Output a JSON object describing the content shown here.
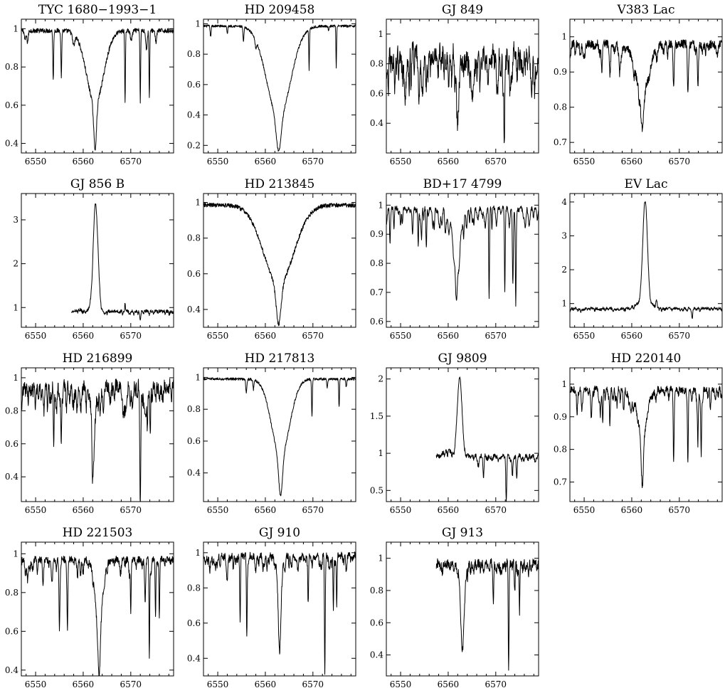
{
  "chart_data": [
    {
      "type": "line",
      "title": "TYC 1680−1993−1",
      "xlim": [
        6547,
        6579
      ],
      "ylim": [
        0.35,
        1.05
      ],
      "xticks": [
        6550,
        6560,
        6570
      ],
      "yticks": [
        0.4,
        0.6,
        0.8,
        1
      ],
      "ytick_labels": [
        "0.4",
        "0.6",
        "0.8",
        "1"
      ],
      "x_start": 6547,
      "x_end": 6579,
      "continuum": 0.99,
      "noise": 0.012,
      "lines": [
        [
          6547.8,
          0.05,
          0.15
        ],
        [
          6548.3,
          0.06,
          0.15
        ],
        [
          6553.7,
          0.26,
          0.09
        ],
        [
          6555.4,
          0.24,
          0.09
        ],
        [
          6558.0,
          0.06,
          0.25
        ],
        [
          6562.5,
          0.38,
          1.8
        ],
        [
          6562.5,
          0.24,
          0.28
        ],
        [
          6568.8,
          0.37,
          0.08
        ],
        [
          6570.1,
          0.05,
          0.2
        ],
        [
          6572.0,
          0.37,
          0.08
        ],
        [
          6573.3,
          0.1,
          0.15
        ],
        [
          6573.9,
          0.35,
          0.08
        ],
        [
          6575.3,
          0.06,
          0.15
        ]
      ]
    },
    {
      "type": "line",
      "title": "HD 209458",
      "xlim": [
        6547,
        6579
      ],
      "ylim": [
        0.15,
        1.03
      ],
      "xticks": [
        6550,
        6560,
        6570
      ],
      "yticks": [
        0.2,
        0.4,
        0.6,
        0.8,
        1
      ],
      "ytick_labels": [
        "0.2",
        "0.4",
        "0.6",
        "0.8",
        "1"
      ],
      "x_start": 6547,
      "x_end": 6579,
      "continuum": 0.985,
      "noise": 0.008,
      "lines": [
        [
          6548.5,
          0.07,
          0.1
        ],
        [
          6552.0,
          0.05,
          0.1
        ],
        [
          6555.4,
          0.1,
          0.1
        ],
        [
          6558.0,
          0.05,
          0.15
        ],
        [
          6562.8,
          0.6,
          2.5
        ],
        [
          6562.8,
          0.22,
          0.5
        ],
        [
          6569.2,
          0.27,
          0.07
        ],
        [
          6573.3,
          0.03,
          0.1
        ],
        [
          6574.9,
          0.27,
          0.07
        ]
      ]
    },
    {
      "type": "line",
      "title": "GJ 849",
      "xlim": [
        6547,
        6579
      ],
      "ylim": [
        0.2,
        1.1
      ],
      "xticks": [
        6550,
        6560,
        6570
      ],
      "yticks": [
        0.4,
        0.6,
        0.8,
        1
      ],
      "ytick_labels": [
        "0.4",
        "0.6",
        "0.8",
        "1"
      ],
      "x_start": 6547,
      "x_end": 6579,
      "continuum": 0.9,
      "noise": 0.06,
      "forest": {
        "spacing": 0.45,
        "depth": 0.2,
        "width": 0.12,
        "seed": 3
      },
      "lines": [
        [
          6553.8,
          0.3,
          0.1
        ],
        [
          6555.4,
          0.2,
          0.1
        ],
        [
          6562.0,
          0.5,
          0.25
        ],
        [
          6571.8,
          0.62,
          0.1
        ],
        [
          6573.0,
          0.15,
          0.1
        ]
      ]
    },
    {
      "type": "line",
      "title": "V383 Lac",
      "xlim": [
        6547,
        6579
      ],
      "ylim": [
        0.67,
        1.05
      ],
      "xticks": [
        6550,
        6560,
        6570
      ],
      "yticks": [
        0.7,
        0.8,
        0.9,
        1
      ],
      "ytick_labels": [
        "0.7",
        "0.8",
        "0.9",
        "1"
      ],
      "x_start": 6547,
      "x_end": 6579,
      "continuum": 0.98,
      "noise": 0.012,
      "forest": {
        "spacing": 1.6,
        "depth": 0.03,
        "width": 0.15,
        "seed": 5
      },
      "lines": [
        [
          6549.2,
          0.03,
          0.15
        ],
        [
          6553.7,
          0.08,
          0.12
        ],
        [
          6555.4,
          0.07,
          0.12
        ],
        [
          6557.6,
          0.05,
          0.3
        ],
        [
          6562.2,
          0.14,
          1.4
        ],
        [
          6562.2,
          0.1,
          0.3
        ],
        [
          6568.8,
          0.13,
          0.12
        ],
        [
          6571.8,
          0.12,
          0.12
        ],
        [
          6573.9,
          0.12,
          0.12
        ],
        [
          6575.5,
          0.03,
          0.1
        ]
      ]
    },
    {
      "type": "line",
      "title": "GJ 856 B",
      "xlim": [
        6547,
        6579
      ],
      "ylim": [
        0.55,
        3.6
      ],
      "xticks": [
        6550,
        6560,
        6570
      ],
      "yticks": [
        1,
        2,
        3
      ],
      "ytick_labels": [
        "1",
        "2",
        "3"
      ],
      "x_start": 6557.5,
      "x_end": 6579,
      "continuum": 0.92,
      "noise": 0.035,
      "forest": {
        "spacing": 0.9,
        "depth": 0.06,
        "width": 0.12,
        "seed": 7
      },
      "lines": [
        [
          6562.6,
          -2.48,
          0.5
        ],
        [
          6559.5,
          -0.03,
          0.5
        ],
        [
          6561.0,
          -0.05,
          0.5
        ],
        [
          6568.8,
          -0.22,
          0.07
        ],
        [
          6572.0,
          0.18,
          0.12
        ],
        [
          6573.9,
          0.08,
          0.12
        ]
      ]
    },
    {
      "type": "line",
      "title": "HD 213845",
      "xlim": [
        6547,
        6579
      ],
      "ylim": [
        0.3,
        1.05
      ],
      "xticks": [
        6550,
        6560,
        6570
      ],
      "yticks": [
        0.4,
        0.6,
        0.8,
        1
      ],
      "ytick_labels": [
        "0.4",
        "0.6",
        "0.8",
        "1"
      ],
      "x_start": 6547,
      "x_end": 6579,
      "continuum": 0.985,
      "noise": 0.012,
      "lines": [
        [
          6562.8,
          0.44,
          3.2
        ],
        [
          6562.8,
          0.23,
          0.5
        ]
      ]
    },
    {
      "type": "line",
      "title": "BD+17 4799",
      "xlim": [
        6547,
        6579
      ],
      "ylim": [
        0.58,
        1.04
      ],
      "xticks": [
        6550,
        6560,
        6570
      ],
      "yticks": [
        0.6,
        0.7,
        0.8,
        0.9,
        1
      ],
      "ytick_labels": [
        "0.6",
        "0.7",
        "0.8",
        "0.9",
        "1"
      ],
      "x_start": 6547,
      "x_end": 6579,
      "continuum": 0.99,
      "noise": 0.008,
      "forest": {
        "spacing": 0.7,
        "depth": 0.05,
        "width": 0.12,
        "seed": 11
      },
      "lines": [
        [
          6547.8,
          0.08,
          0.1
        ],
        [
          6550.0,
          0.06,
          0.1
        ],
        [
          6552.5,
          0.08,
          0.1
        ],
        [
          6553.7,
          0.13,
          0.09
        ],
        [
          6554.4,
          0.1,
          0.09
        ],
        [
          6555.4,
          0.14,
          0.09
        ],
        [
          6556.8,
          0.06,
          0.1
        ],
        [
          6558.3,
          0.05,
          0.1
        ],
        [
          6559.6,
          0.04,
          0.2
        ],
        [
          6561.8,
          0.15,
          0.9
        ],
        [
          6561.8,
          0.12,
          0.25
        ],
        [
          6565.1,
          0.05,
          0.15
        ],
        [
          6568.6,
          0.3,
          0.08
        ],
        [
          6571.9,
          0.27,
          0.08
        ],
        [
          6573.6,
          0.2,
          0.1
        ],
        [
          6574.2,
          0.27,
          0.08
        ]
      ]
    },
    {
      "type": "line",
      "title": "EV Lac",
      "xlim": [
        6547,
        6579
      ],
      "ylim": [
        0.3,
        4.25
      ],
      "xticks": [
        6550,
        6560,
        6570
      ],
      "yticks": [
        1,
        2,
        3,
        4
      ],
      "ytick_labels": [
        "1",
        "2",
        "3",
        "4"
      ],
      "x_start": 6547,
      "x_end": 6579,
      "continuum": 0.86,
      "noise": 0.04,
      "forest": {
        "spacing": 0.8,
        "depth": 0.06,
        "width": 0.12,
        "seed": 13
      },
      "lines": [
        [
          6562.8,
          -3.2,
          0.5
        ],
        [
          6561.2,
          -0.12,
          0.8
        ],
        [
          6564.2,
          -0.1,
          0.6
        ],
        [
          6572.7,
          0.3,
          0.1
        ],
        [
          6549.5,
          0.05,
          0.2
        ],
        [
          6565.2,
          -0.25,
          0.12
        ]
      ]
    },
    {
      "type": "line",
      "title": "HD 216899",
      "xlim": [
        6547,
        6579
      ],
      "ylim": [
        0.25,
        1.06
      ],
      "xticks": [
        6550,
        6560,
        6570
      ],
      "yticks": [
        0.4,
        0.6,
        0.8,
        1
      ],
      "ytick_labels": [
        "0.4",
        "0.6",
        "0.8",
        "1"
      ],
      "x_start": 6547,
      "x_end": 6579,
      "continuum": 0.96,
      "noise": 0.04,
      "forest": {
        "spacing": 0.5,
        "depth": 0.12,
        "width": 0.12,
        "seed": 17
      },
      "lines": [
        [
          6553.8,
          0.36,
          0.09
        ],
        [
          6555.4,
          0.32,
          0.09
        ],
        [
          6562.1,
          0.4,
          0.2
        ],
        [
          6562.1,
          0.12,
          0.5
        ],
        [
          6572.0,
          0.66,
          0.1
        ],
        [
          6573.5,
          0.25,
          0.09
        ],
        [
          6574.1,
          0.32,
          0.09
        ]
      ]
    },
    {
      "type": "line",
      "title": "HD 217813",
      "xlim": [
        6547,
        6579
      ],
      "ylim": [
        0.22,
        1.06
      ],
      "xticks": [
        6550,
        6560,
        6570
      ],
      "yticks": [
        0.4,
        0.6,
        0.8,
        1
      ],
      "ytick_labels": [
        "0.4",
        "0.6",
        "0.8",
        "1"
      ],
      "x_start": 6547,
      "x_end": 6579,
      "continuum": 0.99,
      "noise": 0.008,
      "lines": [
        [
          6556.0,
          0.09,
          0.12
        ],
        [
          6557.5,
          0.06,
          0.1
        ],
        [
          6563.2,
          0.48,
          1.9
        ],
        [
          6563.2,
          0.25,
          0.4
        ],
        [
          6569.8,
          0.24,
          0.08
        ],
        [
          6573.0,
          0.06,
          0.1
        ],
        [
          6575.5,
          0.18,
          0.08
        ],
        [
          6577.0,
          0.05,
          0.1
        ]
      ]
    },
    {
      "type": "line",
      "title": "GJ 9809",
      "xlim": [
        6547,
        6579
      ],
      "ylim": [
        0.35,
        2.15
      ],
      "xticks": [
        6550,
        6560,
        6570
      ],
      "yticks": [
        0.5,
        1,
        1.5,
        2
      ],
      "ytick_labels": [
        "0.5",
        "1",
        "1.5",
        "2"
      ],
      "x_start": 6557.5,
      "x_end": 6579,
      "continuum": 0.97,
      "noise": 0.03,
      "forest": {
        "spacing": 0.7,
        "depth": 0.06,
        "width": 0.12,
        "seed": 19
      },
      "lines": [
        [
          6562.4,
          -1.05,
          0.5
        ],
        [
          6559.8,
          -0.08,
          0.8
        ],
        [
          6566.3,
          0.12,
          0.2
        ],
        [
          6567.4,
          0.22,
          0.1
        ],
        [
          6572.2,
          0.62,
          0.1
        ],
        [
          6573.5,
          0.28,
          0.1
        ],
        [
          6574.4,
          0.28,
          0.1
        ]
      ]
    },
    {
      "type": "line",
      "title": "HD 220140",
      "xlim": [
        6547,
        6579
      ],
      "ylim": [
        0.64,
        1.05
      ],
      "xticks": [
        6550,
        6560,
        6570
      ],
      "yticks": [
        0.7,
        0.8,
        0.9,
        1
      ],
      "ytick_labels": [
        "0.7",
        "0.8",
        "0.9",
        "1"
      ],
      "x_start": 6547,
      "x_end": 6579,
      "continuum": 0.985,
      "noise": 0.01,
      "forest": {
        "spacing": 0.8,
        "depth": 0.03,
        "width": 0.12,
        "seed": 23
      },
      "lines": [
        [
          6548.5,
          0.08,
          0.1
        ],
        [
          6549.5,
          0.06,
          0.1
        ],
        [
          6551.5,
          0.06,
          0.12
        ],
        [
          6553.4,
          0.07,
          0.1
        ],
        [
          6553.9,
          0.1,
          0.09
        ],
        [
          6555.4,
          0.11,
          0.09
        ],
        [
          6556.9,
          0.05,
          0.1
        ],
        [
          6558.3,
          0.06,
          0.12
        ],
        [
          6559.8,
          0.05,
          0.2
        ],
        [
          6562.2,
          0.13,
          1.0
        ],
        [
          6562.2,
          0.15,
          0.25
        ],
        [
          6568.8,
          0.21,
          0.09
        ],
        [
          6571.8,
          0.23,
          0.09
        ],
        [
          6573.9,
          0.16,
          0.09
        ],
        [
          6574.6,
          0.2,
          0.09
        ],
        [
          6576.5,
          0.04,
          0.1
        ]
      ]
    },
    {
      "type": "line",
      "title": "HD 221503",
      "xlim": [
        6547,
        6579
      ],
      "ylim": [
        0.37,
        1.06
      ],
      "xticks": [
        6550,
        6560,
        6570
      ],
      "yticks": [
        0.4,
        0.6,
        0.8,
        1
      ],
      "ytick_labels": [
        "0.4",
        "0.6",
        "0.8",
        "1"
      ],
      "x_start": 6547,
      "x_end": 6579,
      "continuum": 0.97,
      "noise": 0.018,
      "forest": {
        "spacing": 1.0,
        "depth": 0.06,
        "width": 0.12,
        "seed": 29
      },
      "lines": [
        [
          6548.3,
          0.1,
          0.12
        ],
        [
          6551.5,
          0.08,
          0.1
        ],
        [
          6553.5,
          0.1,
          0.1
        ],
        [
          6555.0,
          0.32,
          0.09
        ],
        [
          6556.7,
          0.32,
          0.09
        ],
        [
          6558.8,
          0.08,
          0.1
        ],
        [
          6563.3,
          0.3,
          0.8
        ],
        [
          6563.3,
          0.24,
          0.3
        ],
        [
          6570.0,
          0.26,
          0.08
        ],
        [
          6573.0,
          0.15,
          0.12
        ],
        [
          6573.9,
          0.5,
          0.08
        ],
        [
          6575.2,
          0.3,
          0.08
        ],
        [
          6576.0,
          0.3,
          0.08
        ]
      ]
    },
    {
      "type": "line",
      "title": "GJ 910",
      "xlim": [
        6547,
        6579
      ],
      "ylim": [
        0.3,
        1.06
      ],
      "xticks": [
        6550,
        6560,
        6570
      ],
      "yticks": [
        0.4,
        0.6,
        0.8,
        1
      ],
      "ytick_labels": [
        "0.4",
        "0.6",
        "0.8",
        "1"
      ],
      "x_start": 6547,
      "x_end": 6579,
      "continuum": 0.985,
      "noise": 0.02,
      "forest": {
        "spacing": 0.6,
        "depth": 0.06,
        "width": 0.12,
        "seed": 31
      },
      "lines": [
        [
          6548.3,
          0.08,
          0.1
        ],
        [
          6552.0,
          0.1,
          0.1
        ],
        [
          6554.7,
          0.38,
          0.08
        ],
        [
          6556.1,
          0.45,
          0.08
        ],
        [
          6558.0,
          0.08,
          0.1
        ],
        [
          6563.0,
          0.32,
          0.4
        ],
        [
          6563.0,
          0.2,
          0.2
        ],
        [
          6569.0,
          0.28,
          0.08
        ],
        [
          6572.5,
          0.64,
          0.08
        ],
        [
          6574.3,
          0.3,
          0.08
        ],
        [
          6575.0,
          0.3,
          0.08
        ],
        [
          6577.0,
          0.06,
          0.1
        ]
      ]
    },
    {
      "type": "line",
      "title": "GJ 913",
      "xlim": [
        6547,
        6579
      ],
      "ylim": [
        0.27,
        1.1
      ],
      "xticks": [
        6550,
        6560,
        6570
      ],
      "yticks": [
        0.4,
        0.6,
        0.8,
        1
      ],
      "ytick_labels": [
        "0.4",
        "0.6",
        "0.8",
        "1"
      ],
      "x_start": 6557.5,
      "x_end": 6579,
      "continuum": 0.97,
      "noise": 0.03,
      "forest": {
        "spacing": 0.6,
        "depth": 0.05,
        "width": 0.1,
        "seed": 37
      },
      "lines": [
        [
          6563.0,
          0.4,
          0.3
        ],
        [
          6563.0,
          0.15,
          0.6
        ],
        [
          6569.5,
          0.26,
          0.08
        ],
        [
          6572.7,
          0.65,
          0.08
        ],
        [
          6574.0,
          0.15,
          0.08
        ],
        [
          6575.0,
          0.26,
          0.08
        ]
      ]
    }
  ]
}
